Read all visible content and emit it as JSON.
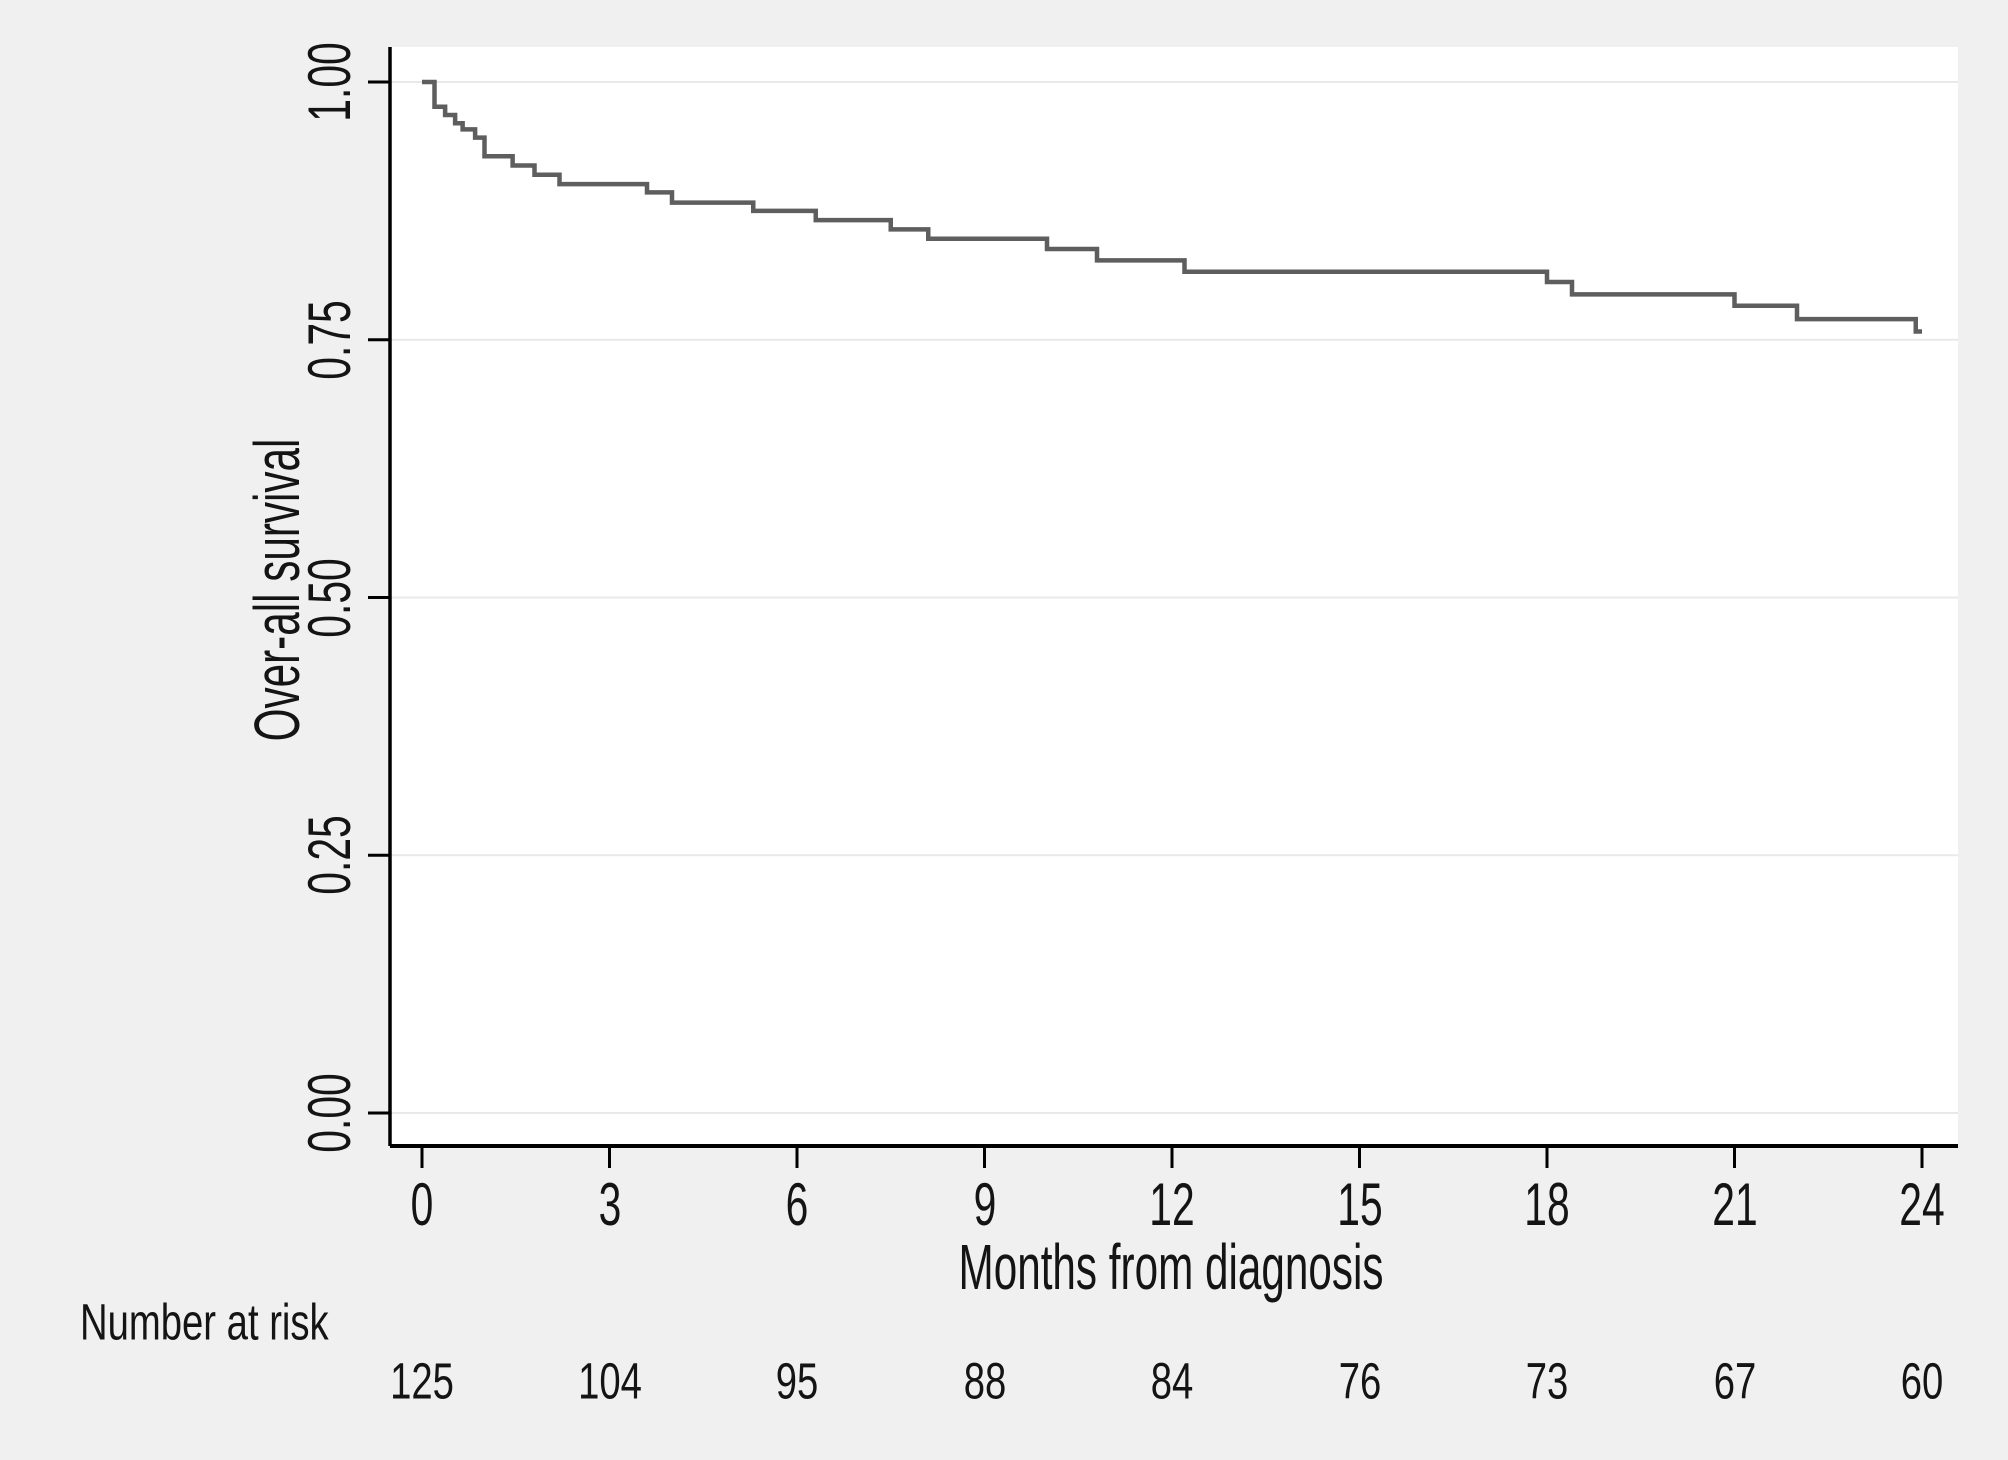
{
  "chart_data": {
    "type": "line",
    "subtype": "kaplan-meier-step",
    "title": "",
    "xlabel": "Months from diagnosis",
    "ylabel": "Over-all survival",
    "xlim": [
      0,
      24
    ],
    "ylim": [
      0.0,
      1.0
    ],
    "grid": "horizontal-gridlines-on",
    "legend": "none",
    "x_ticks": [
      {
        "value": 0,
        "label": "0"
      },
      {
        "value": 3,
        "label": "3"
      },
      {
        "value": 6,
        "label": "6"
      },
      {
        "value": 9,
        "label": "9"
      },
      {
        "value": 12,
        "label": "12"
      },
      {
        "value": 15,
        "label": "15"
      },
      {
        "value": 18,
        "label": "18"
      },
      {
        "value": 21,
        "label": "21"
      },
      {
        "value": 24,
        "label": "24"
      }
    ],
    "y_ticks": [
      {
        "value": 0.0,
        "label": "0.00"
      },
      {
        "value": 0.25,
        "label": "0.25"
      },
      {
        "value": 0.5,
        "label": "0.50"
      },
      {
        "value": 0.75,
        "label": "0.75"
      },
      {
        "value": 1.0,
        "label": "1.00"
      }
    ],
    "series": [
      {
        "name": "Overall survival",
        "color": "#5e5e5e",
        "end_month": 24,
        "steps": [
          [
            0.0,
            1.0
          ],
          [
            0.2,
            0.976
          ],
          [
            0.37,
            0.968
          ],
          [
            0.53,
            0.96
          ],
          [
            0.65,
            0.954
          ],
          [
            0.85,
            0.946
          ],
          [
            1.0,
            0.928
          ],
          [
            1.45,
            0.919
          ],
          [
            1.8,
            0.91
          ],
          [
            2.2,
            0.901
          ],
          [
            3.6,
            0.893
          ],
          [
            4.0,
            0.883
          ],
          [
            5.3,
            0.875
          ],
          [
            6.3,
            0.866
          ],
          [
            7.5,
            0.857
          ],
          [
            8.1,
            0.848
          ],
          [
            10.0,
            0.838
          ],
          [
            10.8,
            0.827
          ],
          [
            12.2,
            0.816
          ],
          [
            18.0,
            0.806
          ],
          [
            18.4,
            0.794
          ],
          [
            21.0,
            0.783
          ],
          [
            22.0,
            0.77
          ],
          [
            23.9,
            0.758
          ]
        ]
      }
    ],
    "risk_table": {
      "label": "Number at risk",
      "months": [
        0,
        3,
        6,
        9,
        12,
        15,
        18,
        21,
        24
      ],
      "counts": [
        125,
        104,
        95,
        88,
        84,
        76,
        73,
        67,
        60
      ]
    }
  },
  "colors": {
    "background": "#f0f0f0",
    "plot_background": "#ffffff",
    "gridline": "#e9e9e9",
    "axis": "#000000",
    "curve": "#5e5e5e",
    "text": "#141414"
  }
}
